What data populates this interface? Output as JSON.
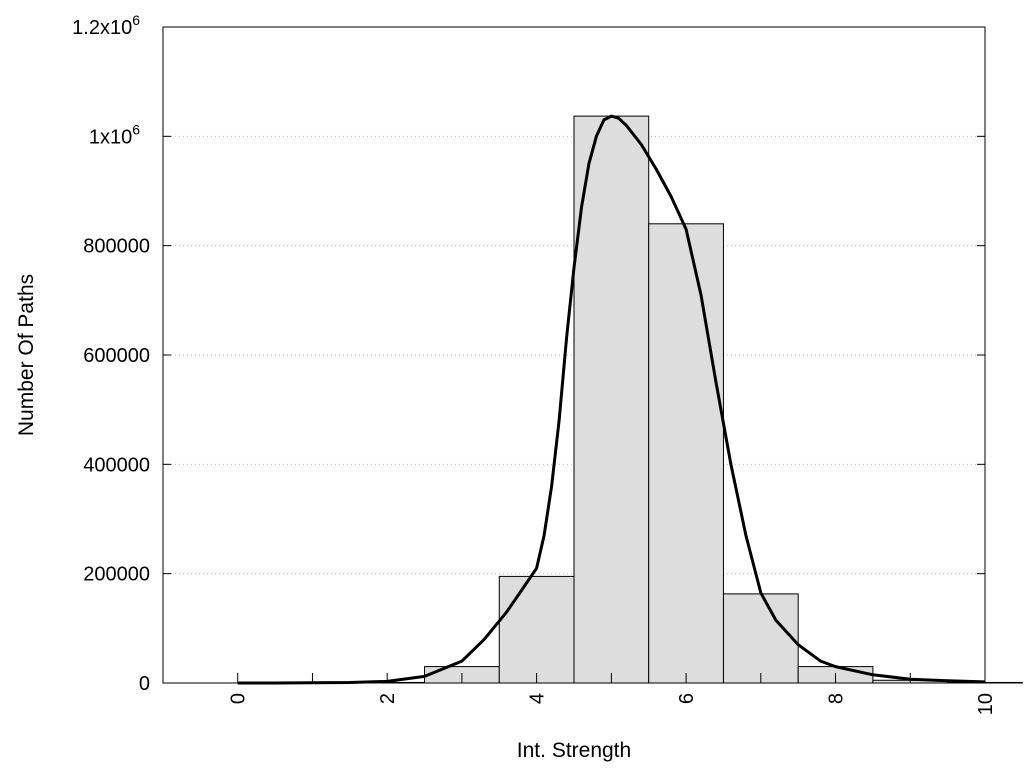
{
  "chart_data": {
    "type": "bar",
    "xlabel": "Int. Strength",
    "ylabel": "Number Of Paths",
    "xlim": [
      -1,
      10
    ],
    "ylim": [
      0,
      1200000
    ],
    "grid": "horizontal dotted",
    "bar_fill": "#dddddd",
    "curve_color": "#000000",
    "x_ticks": [
      {
        "value": 0,
        "label": "0"
      },
      {
        "value": 2,
        "label": "2"
      },
      {
        "value": 4,
        "label": "4"
      },
      {
        "value": 6,
        "label": "6"
      },
      {
        "value": 8,
        "label": "8"
      },
      {
        "value": 10,
        "label": "10"
      }
    ],
    "y_ticks": [
      {
        "value": 0,
        "label": "0",
        "exp": ""
      },
      {
        "value": 200000,
        "label": "200000",
        "exp": ""
      },
      {
        "value": 400000,
        "label": "400000",
        "exp": ""
      },
      {
        "value": 600000,
        "label": "600000",
        "exp": ""
      },
      {
        "value": 800000,
        "label": "800000",
        "exp": ""
      },
      {
        "value": 1000000,
        "label": "1x10",
        "exp": "6"
      },
      {
        "value": 1200000,
        "label": "1.2x10",
        "exp": "6"
      }
    ],
    "bar_width": 1,
    "bars": [
      {
        "x": 0,
        "value": 0
      },
      {
        "x": 1,
        "value": 0
      },
      {
        "x": 2,
        "value": 1000
      },
      {
        "x": 3,
        "value": 30000
      },
      {
        "x": 4,
        "value": 195000
      },
      {
        "x": 5,
        "value": 1037000
      },
      {
        "x": 6,
        "value": 840000
      },
      {
        "x": 7,
        "value": 163000
      },
      {
        "x": 8,
        "value": 30000
      },
      {
        "x": 9,
        "value": 5000
      },
      {
        "x": 10,
        "value": 1000
      }
    ],
    "curve": {
      "x": [
        0,
        0.5,
        1,
        1.5,
        2,
        2.5,
        3,
        3.3,
        3.6,
        3.8,
        4,
        4.1,
        4.2,
        4.3,
        4.4,
        4.5,
        4.6,
        4.7,
        4.8,
        4.9,
        5,
        5.1,
        5.2,
        5.4,
        5.6,
        5.8,
        6,
        6.2,
        6.4,
        6.6,
        6.8,
        7,
        7.2,
        7.5,
        7.8,
        8,
        8.5,
        9,
        9.5,
        10
      ],
      "y": [
        0,
        0,
        500,
        1000,
        3000,
        12000,
        40000,
        80000,
        130000,
        170000,
        210000,
        270000,
        360000,
        480000,
        630000,
        760000,
        870000,
        950000,
        1000000,
        1030000,
        1037000,
        1033000,
        1020000,
        985000,
        940000,
        890000,
        830000,
        710000,
        550000,
        400000,
        270000,
        165000,
        115000,
        70000,
        40000,
        30000,
        15000,
        7000,
        4000,
        2000
      ]
    }
  }
}
